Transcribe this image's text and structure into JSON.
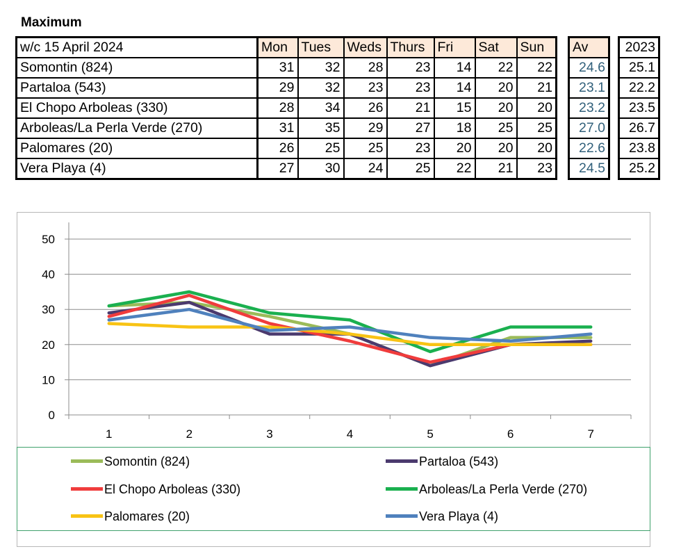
{
  "heading": "Maximum",
  "table": {
    "week_label": "w/c  15 April 2024",
    "day_headers": [
      "Mon",
      "Tues",
      "Weds",
      "Thurs",
      "Fri",
      "Sat",
      "Sun"
    ],
    "av_header": "Av",
    "prev_year_header": "2023",
    "rows": [
      {
        "station": "Somontin (824)",
        "days": [
          "31",
          "32",
          "28",
          "23",
          "14",
          "22",
          "22"
        ],
        "av": "24.6",
        "prev": "25.1"
      },
      {
        "station": "Partaloa (543)",
        "days": [
          "29",
          "32",
          "23",
          "23",
          "14",
          "20",
          "21"
        ],
        "av": "23.1",
        "prev": "22.2"
      },
      {
        "station": "El Chopo  Arboleas (330)",
        "days": [
          "28",
          "34",
          "26",
          "21",
          "15",
          "20",
          "20"
        ],
        "av": "23.2",
        "prev": "23.5"
      },
      {
        "station": "Arboleas/La Perla Verde (270)",
        "days": [
          "31",
          "35",
          "29",
          "27",
          "18",
          "25",
          "25"
        ],
        "av": "27.0",
        "prev": "26.7"
      },
      {
        "station": "Palomares (20)",
        "days": [
          "26",
          "25",
          "25",
          "23",
          "20",
          "20",
          "20"
        ],
        "av": "22.6",
        "prev": "23.8"
      },
      {
        "station": "Vera Playa (4)",
        "days": [
          "27",
          "30",
          "24",
          "25",
          "22",
          "21",
          "23"
        ],
        "av": "24.5",
        "prev": "25.2"
      }
    ]
  },
  "chart_data": {
    "type": "line",
    "x": [
      1,
      2,
      3,
      4,
      5,
      6,
      7
    ],
    "x_tick_labels": [
      "1",
      "2",
      "3",
      "4",
      "5",
      "6",
      "7"
    ],
    "y_tick_labels": [
      "0",
      "10",
      "20",
      "30",
      "40",
      "50"
    ],
    "ylim": [
      0,
      50
    ],
    "grid": true,
    "legend_position": "bottom",
    "series": [
      {
        "name": "Somontin (824)",
        "color": "#9bbb59",
        "values": [
          31,
          32,
          28,
          23,
          14,
          22,
          22
        ]
      },
      {
        "name": "Partaloa (543)",
        "color": "#4b3a6e",
        "values": [
          29,
          32,
          23,
          23,
          14,
          20,
          21
        ]
      },
      {
        "name": "El Chopo  Arboleas (330)",
        "color": "#f03c3c",
        "values": [
          28,
          34,
          26,
          21,
          15,
          20,
          20
        ]
      },
      {
        "name": "Arboleas/La Perla Verde (270)",
        "color": "#1ab04f",
        "values": [
          31,
          35,
          29,
          27,
          18,
          25,
          25
        ]
      },
      {
        "name": "Palomares (20)",
        "color": "#f8c314",
        "values": [
          26,
          25,
          25,
          23,
          20,
          20,
          20
        ]
      },
      {
        "name": "Vera Playa (4)",
        "color": "#4f81bd",
        "values": [
          27,
          30,
          24,
          25,
          22,
          21,
          23
        ]
      }
    ]
  }
}
